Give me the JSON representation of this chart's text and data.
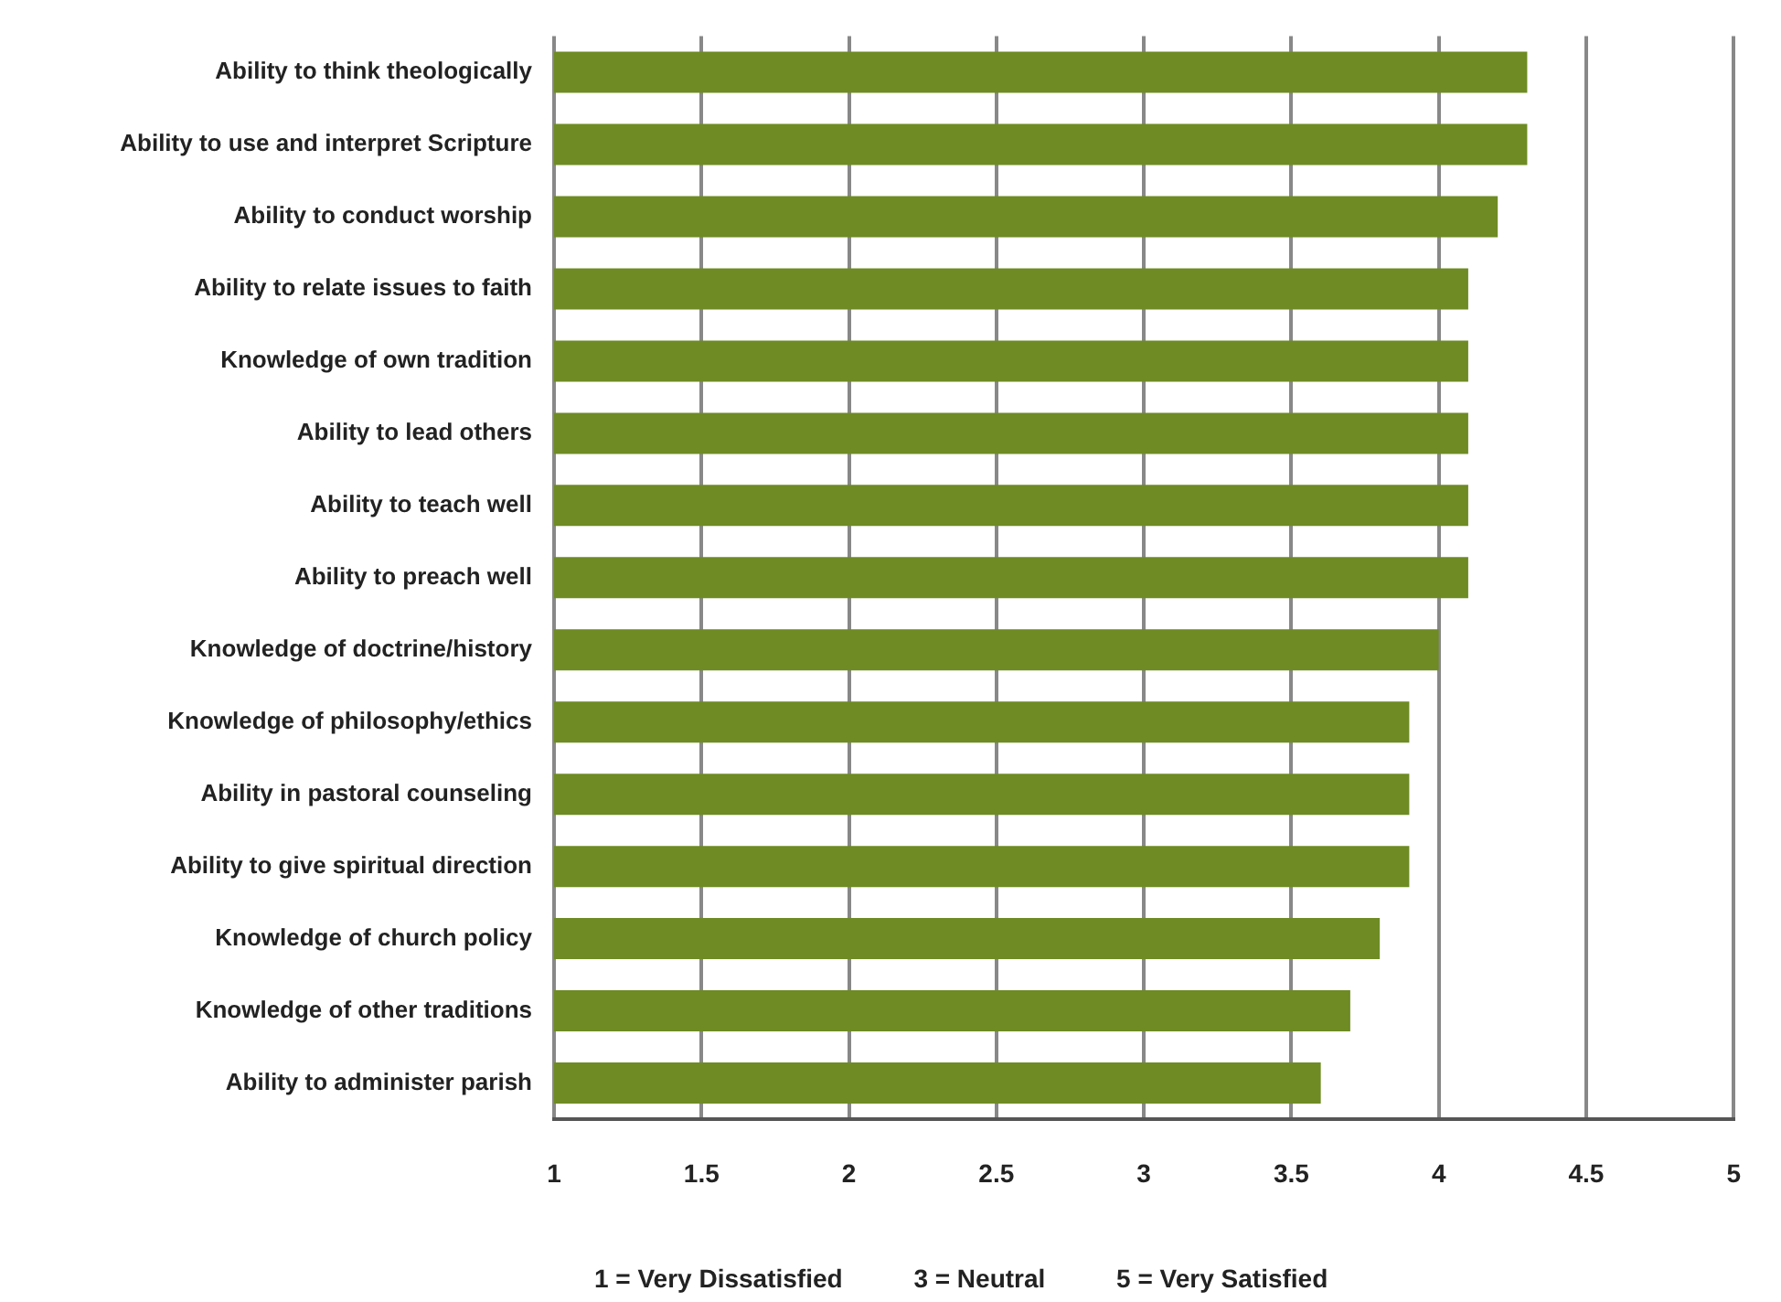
{
  "chart_data": {
    "type": "bar",
    "orientation": "horizontal",
    "categories": [
      "Ability to think theologically",
      "Ability to use and interpret Scripture",
      "Ability to conduct worship",
      "Ability to relate issues to faith",
      "Knowledge of own tradition",
      "Ability to lead others",
      "Ability to teach well",
      "Ability to preach well",
      "Knowledge of doctrine/history",
      "Knowledge of philosophy/ethics",
      "Ability in pastoral counseling",
      "Ability to give spiritual direction",
      "Knowledge of church policy",
      "Knowledge of other traditions",
      "Ability to administer parish"
    ],
    "values": [
      4.3,
      4.3,
      4.2,
      4.1,
      4.1,
      4.1,
      4.1,
      4.1,
      4.0,
      3.9,
      3.9,
      3.9,
      3.8,
      3.7,
      3.6
    ],
    "color": "#6e8b24",
    "xlim": [
      1,
      5
    ],
    "xticks": [
      1,
      1.5,
      2,
      2.5,
      3,
      3.5,
      4,
      4.5,
      5
    ],
    "grid": "x",
    "annotations": [
      "1 = Very Dissatisfied          3 = Neutral          5 = Very Satisfied"
    ]
  }
}
